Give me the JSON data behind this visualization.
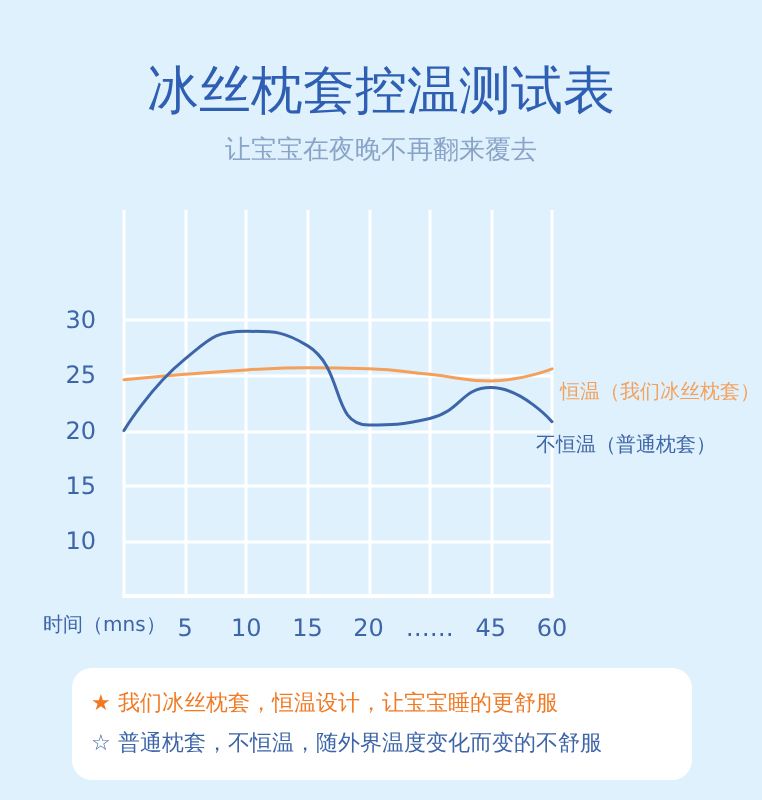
{
  "chart_data": {
    "type": "line",
    "title": "冰丝枕套控温测试表",
    "subtitle": "让宝宝在夜晚不再翻来覆去",
    "xlabel": "时间（mns）",
    "categories": [
      null,
      "5",
      "10",
      "15",
      "20",
      "……",
      "45",
      "60"
    ],
    "series": [
      {
        "name": "恒温（我们冰丝枕套）",
        "color": "#f5a05a",
        "values": [
          24.6,
          25.1,
          25.5,
          25.7,
          25.6,
          25.1,
          24.5,
          25.6
        ]
      },
      {
        "name": "不恒温（普通枕套）",
        "color": "#3d65a8",
        "values": [
          20.0,
          26.5,
          29.0,
          27.7,
          20.5,
          21.1,
          23.9,
          20.8
        ]
      }
    ],
    "ylim": [
      5,
      40
    ],
    "yticks": [
      10,
      15,
      20,
      25,
      30
    ],
    "grid": true,
    "legend": false,
    "marker": "none",
    "line_style": "solid",
    "annotations": [
      "★ 我们冰丝枕套，恒温设计，让宝宝睡的更舒服",
      "☆ 普通枕套，不恒温，随外界温度变化而变的不舒服"
    ]
  }
}
